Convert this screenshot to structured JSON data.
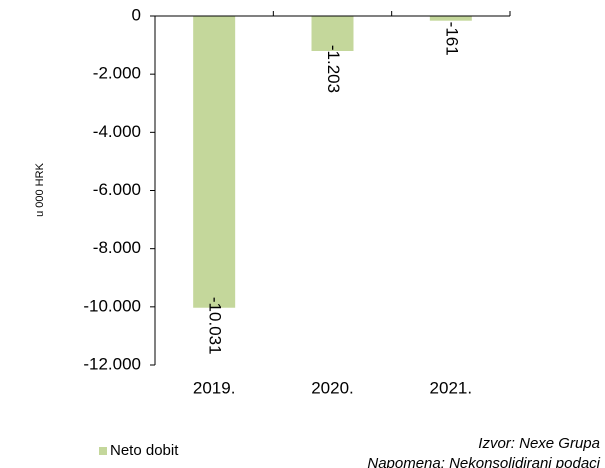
{
  "chart_data": {
    "type": "bar",
    "y_axis_label": "u 000 HRK",
    "categories": [
      "2019.",
      "2020.",
      "2021."
    ],
    "series": [
      {
        "name": "Neto dobit",
        "color": "#c4d79b",
        "values": [
          -10031,
          -1203,
          -161
        ],
        "value_labels": [
          "-10.031",
          "-1.203",
          "-161"
        ]
      }
    ],
    "ylim": [
      -12000,
      0
    ],
    "yticks": [
      0,
      {
        "value": -2000,
        "label": "-2.000"
      },
      {
        "value": -4000,
        "label": "-4.000"
      },
      {
        "value": -6000,
        "label": "-6.000"
      },
      {
        "value": -8000,
        "label": "-8.000"
      },
      {
        "value": -10000,
        "label": "-10.000"
      },
      {
        "value": -12000,
        "label": "-12.000"
      }
    ],
    "legend": "bottom-left",
    "annotations": [
      "Izvor: Nexe Grupa",
      "Napomena: Nekonsolidirani podaci"
    ]
  }
}
